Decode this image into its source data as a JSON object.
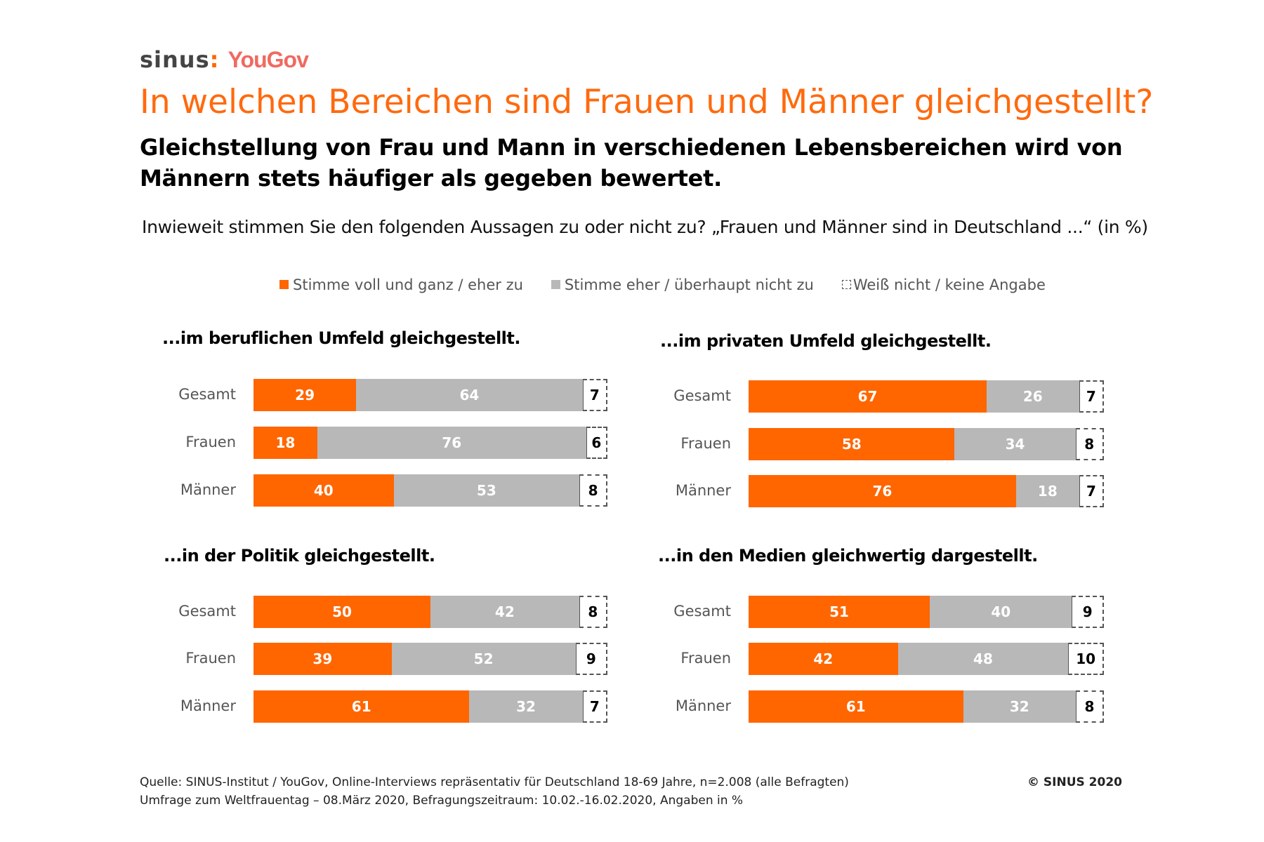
{
  "logo": {
    "sinus": "sinus",
    "separator": ":",
    "yougov": "YouGov"
  },
  "title": "In welchen Bereichen sind Frauen und Männer gleichgestellt?",
  "subtitle": "Gleichstellung von Frau und Mann in verschiedenen Lebensbereichen wird von Männern stets häufiger als gegeben bewertet.",
  "question": "Inwieweit stimmen Sie den folgenden Aussagen zu oder nicht zu?  „Frauen und Männer sind in Deutschland ...“ (in %)",
  "colors": {
    "agree": "#ff6600",
    "disagree": "#b8b8b8",
    "dont_know": "#ffffff",
    "title": "#ff6a0e"
  },
  "chart_data": [
    {
      "type": "bar",
      "stacked": true,
      "orientation": "horizontal",
      "title": "...im beruflichen Umfeld gleichgestellt.",
      "categories": [
        "Gesamt",
        "Frauen",
        "Männer"
      ],
      "series": [
        {
          "name": "Stimme voll und ganz / eher zu",
          "values": [
            29,
            18,
            40
          ]
        },
        {
          "name": "Stimme eher / überhaupt nicht zu",
          "values": [
            64,
            76,
            53
          ]
        },
        {
          "name": "Weiß nicht / keine Angabe",
          "values": [
            7,
            6,
            8
          ]
        }
      ]
    },
    {
      "type": "bar",
      "stacked": true,
      "orientation": "horizontal",
      "title": "...im privaten Umfeld gleichgestellt.",
      "categories": [
        "Gesamt",
        "Frauen",
        "Männer"
      ],
      "series": [
        {
          "name": "Stimme voll und ganz / eher zu",
          "values": [
            67,
            58,
            76
          ]
        },
        {
          "name": "Stimme eher / überhaupt nicht zu",
          "values": [
            26,
            34,
            18
          ]
        },
        {
          "name": "Weiß nicht / keine Angabe",
          "values": [
            7,
            8,
            7
          ]
        }
      ]
    },
    {
      "type": "bar",
      "stacked": true,
      "orientation": "horizontal",
      "title": "...in der Politik gleichgestellt.",
      "categories": [
        "Gesamt",
        "Frauen",
        "Männer"
      ],
      "series": [
        {
          "name": "Stimme voll und ganz / eher zu",
          "values": [
            50,
            39,
            61
          ]
        },
        {
          "name": "Stimme eher / überhaupt nicht zu",
          "values": [
            42,
            52,
            32
          ]
        },
        {
          "name": "Weiß nicht / keine Angabe",
          "values": [
            8,
            9,
            7
          ]
        }
      ]
    },
    {
      "type": "bar",
      "stacked": true,
      "orientation": "horizontal",
      "title": "...in den Medien gleichwertig dargestellt.",
      "categories": [
        "Gesamt",
        "Frauen",
        "Männer"
      ],
      "series": [
        {
          "name": "Stimme voll und ganz / eher zu",
          "values": [
            51,
            42,
            61
          ]
        },
        {
          "name": "Stimme eher / überhaupt nicht zu",
          "values": [
            40,
            48,
            32
          ]
        },
        {
          "name": "Weiß nicht / keine Angabe",
          "values": [
            9,
            10,
            8
          ]
        }
      ]
    }
  ],
  "legend": [
    "Stimme voll und ganz / eher zu",
    "Stimme eher / überhaupt nicht zu",
    "Weiß nicht / keine Angabe"
  ],
  "footer": {
    "line1": "Quelle: SINUS-Institut / YouGov, Online-Interviews repräsentativ für Deutschland 18-69 Jahre, n=2.008 (alle Befragten)",
    "line2": "Umfrage zum Weltfrauentag – 08.März 2020, Befragungszeitraum: 10.02.-16.02.2020, Angaben in %",
    "copyright": "© SINUS 2020"
  }
}
